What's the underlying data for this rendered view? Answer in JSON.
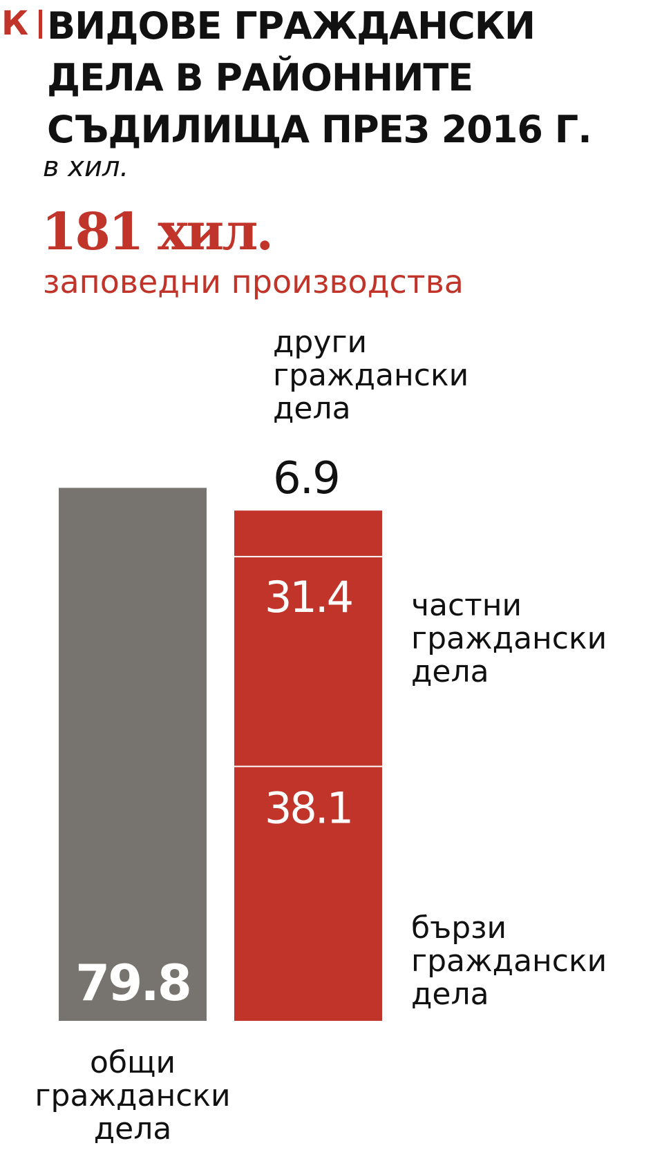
{
  "header": {
    "brand_letter": "К",
    "title_lines": [
      "ВИДОВЕ ГРАЖДАНСКИ",
      "ДЕЛА В РАЙОННИТЕ",
      "СЪДИЛИЩА ПРЕЗ 2016 Г."
    ],
    "unit": "в хил."
  },
  "highlight": {
    "value": "181 хил.",
    "label": "заповедни производства"
  },
  "colors": {
    "accent": "#c1342a",
    "gray": "#77746f",
    "text": "#111111",
    "white": "#ffffff"
  },
  "chart_data": {
    "type": "bar",
    "stacked": true,
    "unit": "в хил.",
    "bars": [
      {
        "label_lines": [
          "общи",
          "граждански",
          "дела"
        ],
        "value": 79.8,
        "value_label": "79.8"
      },
      {
        "segments": [
          {
            "label_lines": [
              "бързи",
              "граждански",
              "дела"
            ],
            "value": 38.1,
            "value_label": "38.1"
          },
          {
            "label_lines": [
              "частни",
              "граждански",
              "дела"
            ],
            "value": 31.4,
            "value_label": "31.4"
          },
          {
            "label_lines": [
              "други",
              "граждански",
              "дела"
            ],
            "value": 6.9,
            "value_label": "6.9"
          }
        ]
      }
    ]
  }
}
